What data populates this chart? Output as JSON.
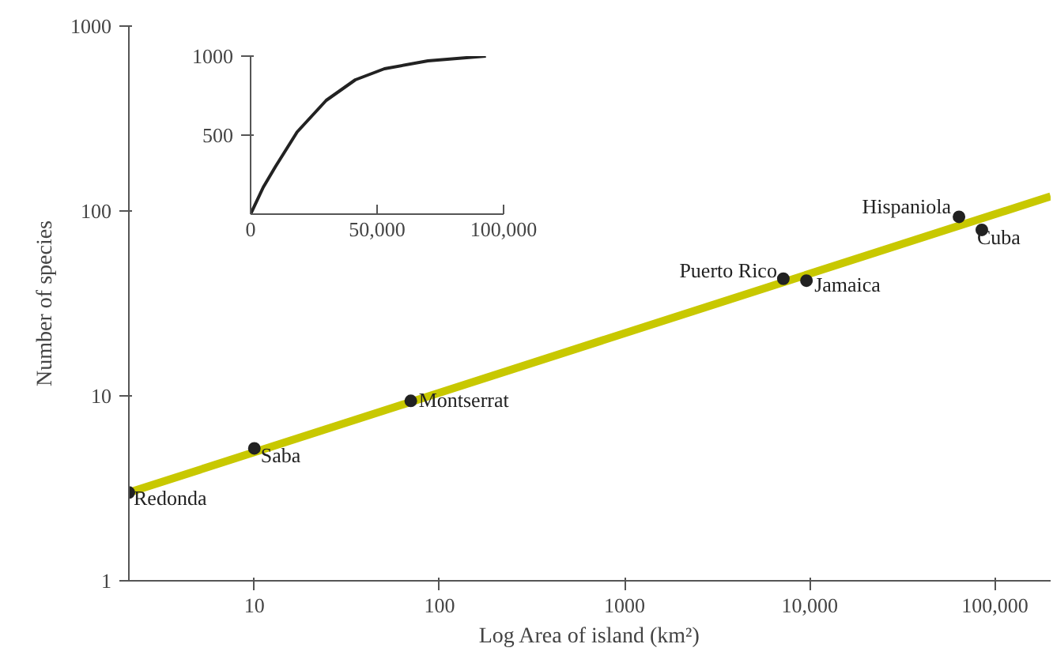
{
  "chart_data": [
    {
      "type": "scatter",
      "xlabel": "Log Area of island (km²)",
      "ylabel": "Number of species",
      "log": "xy",
      "grid": false,
      "xlim": [
        2.1,
        200000
      ],
      "ylim": [
        1,
        1000
      ],
      "xticks": [
        10,
        100,
        1000,
        {
          "value": 10000,
          "label": "10,000"
        },
        {
          "value": 100000,
          "label": "100,000"
        }
      ],
      "yticks": [
        1,
        10,
        100,
        1000
      ],
      "series": [
        {
          "type": "scatter",
          "marker": "circle",
          "color": "#222222",
          "x": [
            2.1,
            10,
            70,
            7200,
            9600,
            64000,
            85000
          ],
          "values": [
            3,
            5.2,
            9.4,
            43,
            42,
            93,
            79
          ]
        },
        {
          "type": "line",
          "color": "#c8c800",
          "x": [
            2.1,
            200000
          ],
          "values": [
            3,
            120
          ]
        }
      ],
      "annotations": [
        {
          "text": "Redonda",
          "x": 2.1,
          "y": 3
        },
        {
          "text": "Saba",
          "x": 10,
          "y": 5.2
        },
        {
          "text": "Montserrat",
          "x": 70,
          "y": 9.4
        },
        {
          "text": "Puerto Rico",
          "x": 7200,
          "y": 43
        },
        {
          "text": "Jamaica",
          "x": 9600,
          "y": 42
        },
        {
          "text": "Hispaniola",
          "x": 64000,
          "y": 93
        },
        {
          "text": "Cuba",
          "x": 85000,
          "y": 79
        }
      ]
    },
    {
      "type": "line",
      "grid": false,
      "xlim": [
        0,
        100000
      ],
      "ylim": [
        0,
        1000
      ],
      "xticks": [
        0,
        {
          "value": 50000,
          "label": "50,000"
        },
        {
          "value": 100000,
          "label": "100,000"
        }
      ],
      "yticks": [
        500,
        1000
      ],
      "series": [
        {
          "color": "#222222",
          "x": [
            0,
            5000,
            9800,
            18400,
            29900,
            41400,
            52900,
            70100,
            93000
          ],
          "values": [
            0,
            170,
            300,
            520,
            720,
            850,
            920,
            970,
            1000
          ]
        }
      ]
    }
  ]
}
